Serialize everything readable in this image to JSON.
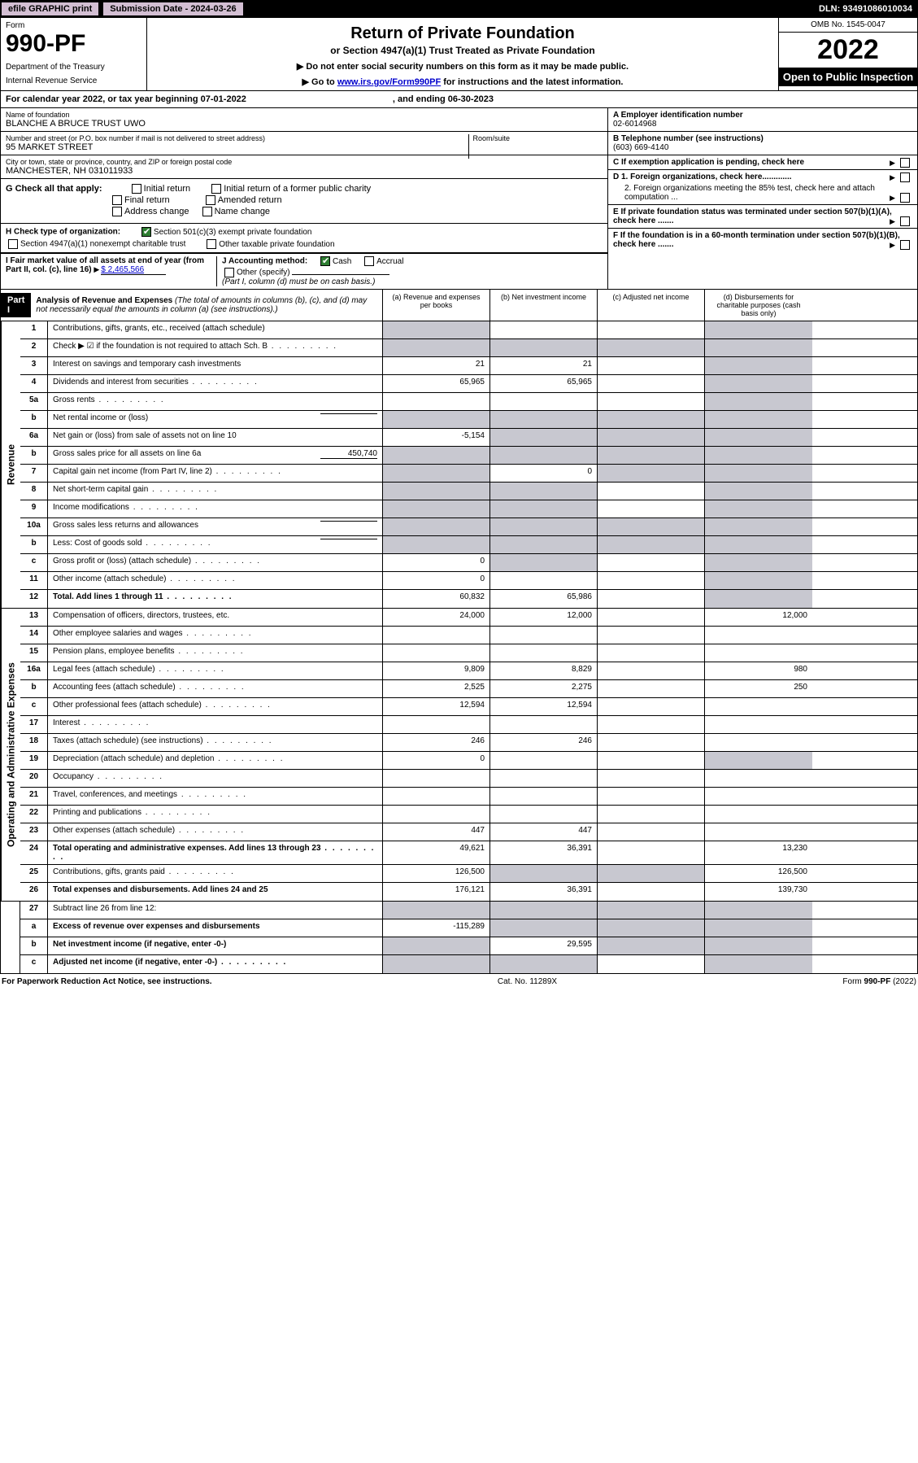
{
  "header": {
    "efile": "efile GRAPHIC print",
    "submission": "Submission Date - 2024-03-26",
    "dln": "DLN: 93491086010034"
  },
  "top": {
    "form_label": "Form",
    "form_no": "990-PF",
    "dept": "Department of the Treasury",
    "irs": "Internal Revenue Service",
    "title": "Return of Private Foundation",
    "sub1": "or Section 4947(a)(1) Trust Treated as Private Foundation",
    "sub2": "▶ Do not enter social security numbers on this form as it may be made public.",
    "sub3_pre": "▶ Go to ",
    "sub3_link": "www.irs.gov/Form990PF",
    "sub3_post": " for instructions and the latest information.",
    "omb": "OMB No. 1545-0047",
    "year": "2022",
    "open": "Open to Public Inspection"
  },
  "cal": {
    "pre": "For calendar year 2022, or tax year beginning 07-01-2022",
    "mid": ", and ending 06-30-2023"
  },
  "info": {
    "name_lbl": "Name of foundation",
    "name": "BLANCHE A BRUCE TRUST UWO",
    "addr_lbl": "Number and street (or P.O. box number if mail is not delivered to street address)",
    "addr": "95 MARKET STREET",
    "room_lbl": "Room/suite",
    "city_lbl": "City or town, state or province, country, and ZIP or foreign postal code",
    "city": "MANCHESTER, NH  031011933",
    "A_lbl": "A Employer identification number",
    "A": "02-6014968",
    "B_lbl": "B Telephone number (see instructions)",
    "B": "(603) 669-4140",
    "C": "C If exemption application is pending, check here",
    "D1": "D 1. Foreign organizations, check here.............",
    "D2": "2. Foreign organizations meeting the 85% test, check here and attach computation ...",
    "E": "E  If private foundation status was terminated under section 507(b)(1)(A), check here .......",
    "F": "F  If the foundation is in a 60-month termination under section 507(b)(1)(B), check here .......",
    "G": "G Check all that apply:",
    "G_items": [
      "Initial return",
      "Initial return of a former public charity",
      "Final return",
      "Amended return",
      "Address change",
      "Name change"
    ],
    "H": "H Check type of organization:",
    "H1": "Section 501(c)(3) exempt private foundation",
    "H2": "Section 4947(a)(1) nonexempt charitable trust",
    "H3": "Other taxable private foundation",
    "I": "I Fair market value of all assets at end of year (from Part II, col. (c), line 16)",
    "I_val": "$  2,465,566",
    "J": "J Accounting method:",
    "J_cash": "Cash",
    "J_acc": "Accrual",
    "J_other": "Other (specify)",
    "J_note": "(Part I, column (d) must be on cash basis.)"
  },
  "part1": {
    "label": "Part I",
    "title": "Analysis of Revenue and Expenses",
    "title_note": " (The total of amounts in columns (b), (c), and (d) may not necessarily equal the amounts in column (a) (see instructions).)",
    "ca": "(a)   Revenue and expenses per books",
    "cb": "(b)   Net investment income",
    "cc": "(c)   Adjusted net income",
    "cd": "(d)   Disbursements for charitable purposes (cash basis only)"
  },
  "side": {
    "rev": "Revenue",
    "exp": "Operating and Administrative Expenses"
  },
  "rows": [
    {
      "n": "1",
      "d": "Contributions, gifts, grants, etc., received (attach schedule)",
      "a": "",
      "b": "",
      "c": "",
      "dd": "",
      "sa": true,
      "sd": true
    },
    {
      "n": "2",
      "d": "Check ▶ ☑ if the foundation is not required to attach Sch. B",
      "a": "",
      "b": "",
      "c": "",
      "dd": "",
      "dots": true,
      "sa": true,
      "sb": true,
      "sc": true,
      "sd": true
    },
    {
      "n": "3",
      "d": "Interest on savings and temporary cash investments",
      "a": "21",
      "b": "21",
      "c": "",
      "dd": "",
      "sd": true
    },
    {
      "n": "4",
      "d": "Dividends and interest from securities",
      "a": "65,965",
      "b": "65,965",
      "c": "",
      "dd": "",
      "dots": true,
      "sd": true
    },
    {
      "n": "5a",
      "d": "Gross rents",
      "a": "",
      "b": "",
      "c": "",
      "dd": "",
      "dots": true,
      "sd": true
    },
    {
      "n": "b",
      "d": "Net rental income or (loss)",
      "a": "",
      "b": "",
      "c": "",
      "dd": "",
      "inline": true,
      "sa": true,
      "sb": true,
      "sc": true,
      "sd": true
    },
    {
      "n": "6a",
      "d": "Net gain or (loss) from sale of assets not on line 10",
      "a": "-5,154",
      "b": "",
      "c": "",
      "dd": "",
      "sb": true,
      "sc": true,
      "sd": true
    },
    {
      "n": "b",
      "d": "Gross sales price for all assets on line 6a",
      "a": "",
      "b": "",
      "c": "",
      "dd": "",
      "inline": true,
      "iv": "450,740",
      "sa": true,
      "sb": true,
      "sc": true,
      "sd": true
    },
    {
      "n": "7",
      "d": "Capital gain net income (from Part IV, line 2)",
      "a": "",
      "b": "0",
      "c": "",
      "dd": "",
      "dots": true,
      "sa": true,
      "sc": true,
      "sd": true
    },
    {
      "n": "8",
      "d": "Net short-term capital gain",
      "a": "",
      "b": "",
      "c": "",
      "dd": "",
      "dots": true,
      "sa": true,
      "sb": true,
      "sd": true
    },
    {
      "n": "9",
      "d": "Income modifications",
      "a": "",
      "b": "",
      "c": "",
      "dd": "",
      "dots": true,
      "sa": true,
      "sb": true,
      "sd": true
    },
    {
      "n": "10a",
      "d": "Gross sales less returns and allowances",
      "a": "",
      "b": "",
      "c": "",
      "dd": "",
      "inline": true,
      "sa": true,
      "sb": true,
      "sc": true,
      "sd": true
    },
    {
      "n": "b",
      "d": "Less: Cost of goods sold",
      "a": "",
      "b": "",
      "c": "",
      "dd": "",
      "inline": true,
      "dots": true,
      "sa": true,
      "sb": true,
      "sc": true,
      "sd": true
    },
    {
      "n": "c",
      "d": "Gross profit or (loss) (attach schedule)",
      "a": "0",
      "b": "",
      "c": "",
      "dd": "",
      "dots": true,
      "sb": true,
      "sd": true
    },
    {
      "n": "11",
      "d": "Other income (attach schedule)",
      "a": "0",
      "b": "",
      "c": "",
      "dd": "",
      "dots": true,
      "sd": true
    },
    {
      "n": "12",
      "d": "Total. Add lines 1 through 11",
      "a": "60,832",
      "b": "65,986",
      "c": "",
      "dd": "",
      "dots": true,
      "bold": true,
      "sd": true
    }
  ],
  "exp_rows": [
    {
      "n": "13",
      "d": "Compensation of officers, directors, trustees, etc.",
      "a": "24,000",
      "b": "12,000",
      "c": "",
      "dd": "12,000"
    },
    {
      "n": "14",
      "d": "Other employee salaries and wages",
      "a": "",
      "b": "",
      "c": "",
      "dd": "",
      "dots": true
    },
    {
      "n": "15",
      "d": "Pension plans, employee benefits",
      "a": "",
      "b": "",
      "c": "",
      "dd": "",
      "dots": true
    },
    {
      "n": "16a",
      "d": "Legal fees (attach schedule)",
      "a": "9,809",
      "b": "8,829",
      "c": "",
      "dd": "980",
      "dots": true
    },
    {
      "n": "b",
      "d": "Accounting fees (attach schedule)",
      "a": "2,525",
      "b": "2,275",
      "c": "",
      "dd": "250",
      "dots": true
    },
    {
      "n": "c",
      "d": "Other professional fees (attach schedule)",
      "a": "12,594",
      "b": "12,594",
      "c": "",
      "dd": "",
      "dots": true
    },
    {
      "n": "17",
      "d": "Interest",
      "a": "",
      "b": "",
      "c": "",
      "dd": "",
      "dots": true
    },
    {
      "n": "18",
      "d": "Taxes (attach schedule) (see instructions)",
      "a": "246",
      "b": "246",
      "c": "",
      "dd": "",
      "dots": true
    },
    {
      "n": "19",
      "d": "Depreciation (attach schedule) and depletion",
      "a": "0",
      "b": "",
      "c": "",
      "dd": "",
      "dots": true,
      "sd": true
    },
    {
      "n": "20",
      "d": "Occupancy",
      "a": "",
      "b": "",
      "c": "",
      "dd": "",
      "dots": true
    },
    {
      "n": "21",
      "d": "Travel, conferences, and meetings",
      "a": "",
      "b": "",
      "c": "",
      "dd": "",
      "dots": true
    },
    {
      "n": "22",
      "d": "Printing and publications",
      "a": "",
      "b": "",
      "c": "",
      "dd": "",
      "dots": true
    },
    {
      "n": "23",
      "d": "Other expenses (attach schedule)",
      "a": "447",
      "b": "447",
      "c": "",
      "dd": "",
      "dots": true
    },
    {
      "n": "24",
      "d": "Total operating and administrative expenses. Add lines 13 through 23",
      "a": "49,621",
      "b": "36,391",
      "c": "",
      "dd": "13,230",
      "dots": true,
      "bold": true
    },
    {
      "n": "25",
      "d": "Contributions, gifts, grants paid",
      "a": "126,500",
      "b": "",
      "c": "",
      "dd": "126,500",
      "dots": true,
      "sb": true,
      "sc": true
    },
    {
      "n": "26",
      "d": "Total expenses and disbursements. Add lines 24 and 25",
      "a": "176,121",
      "b": "36,391",
      "c": "",
      "dd": "139,730",
      "bold": true
    }
  ],
  "bottom_rows": [
    {
      "n": "27",
      "d": "Subtract line 26 from line 12:",
      "a": "",
      "b": "",
      "c": "",
      "dd": "",
      "sa": true,
      "sb": true,
      "sc": true,
      "sd": true
    },
    {
      "n": "a",
      "d": "Excess of revenue over expenses and disbursements",
      "a": "-115,289",
      "b": "",
      "c": "",
      "dd": "",
      "bold": true,
      "sb": true,
      "sc": true,
      "sd": true
    },
    {
      "n": "b",
      "d": "Net investment income (if negative, enter -0-)",
      "a": "",
      "b": "29,595",
      "c": "",
      "dd": "",
      "bold": true,
      "sa": true,
      "sc": true,
      "sd": true
    },
    {
      "n": "c",
      "d": "Adjusted net income (if negative, enter -0-)",
      "a": "",
      "b": "",
      "c": "",
      "dd": "",
      "bold": true,
      "dots": true,
      "sa": true,
      "sb": true,
      "sd": true
    }
  ],
  "footer": {
    "left": "For Paperwork Reduction Act Notice, see instructions.",
    "mid": "Cat. No. 11289X",
    "right": "Form 990-PF (2022)"
  }
}
